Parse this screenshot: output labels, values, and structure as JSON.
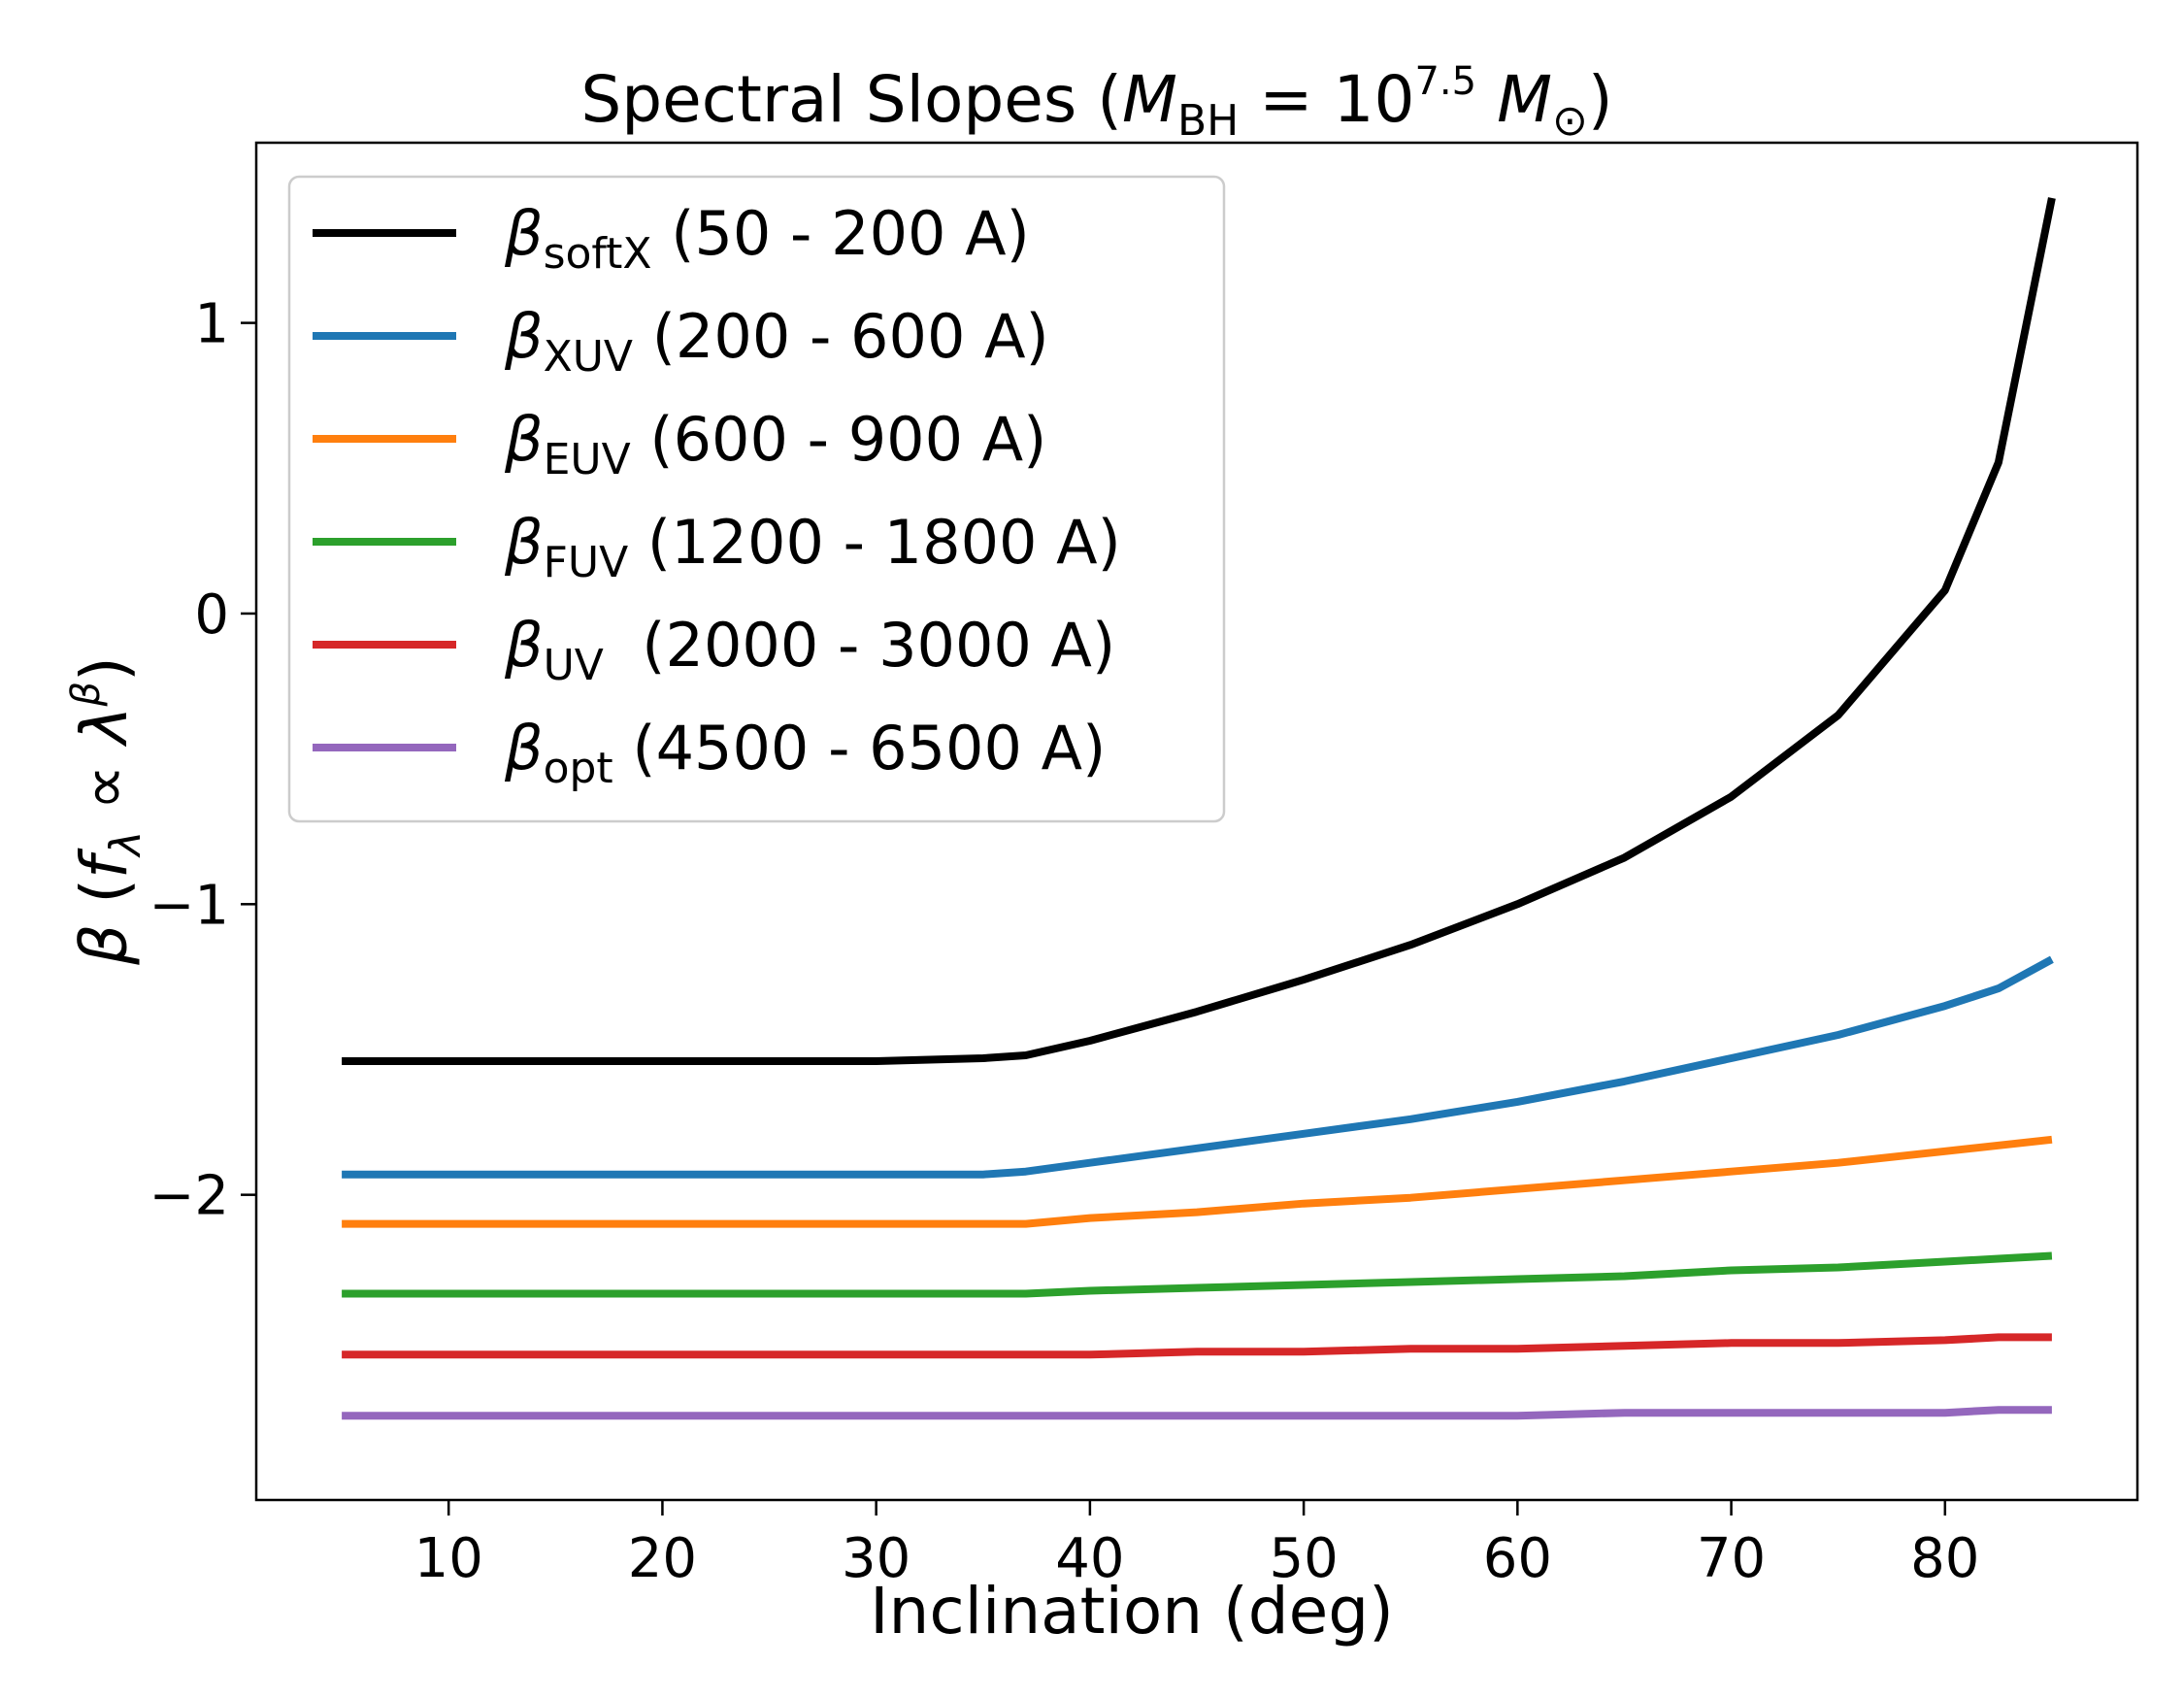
{
  "chart_data": {
    "type": "line",
    "title": {
      "prefix": "Spectral Slopes (",
      "var_M": "M",
      "var_sub": "BH",
      "eq": " = 10",
      "exp": "7.5",
      "sp": " ",
      "var_M2": "M",
      "sun_sub": "⊙",
      "suffix": ")"
    },
    "xlabel": "Inclination (deg)",
    "ylabel": {
      "beta": "β",
      "open": " (",
      "f": "f",
      "f_sub": "λ",
      "prop": " ∝ ",
      "lam": "λ",
      "exp": "β",
      "close": ")"
    },
    "xlim": [
      1,
      89
    ],
    "ylim": [
      -3.05,
      1.62
    ],
    "xticks": [
      10,
      20,
      30,
      40,
      50,
      60,
      70,
      80
    ],
    "yticks": [
      1,
      0,
      -1,
      -2
    ],
    "ytick_labels": [
      "1",
      "0",
      "−1",
      "−2"
    ],
    "grid": false,
    "legend_position": "upper-left",
    "x": [
      5,
      10,
      15,
      20,
      25,
      30,
      35,
      37,
      40,
      45,
      50,
      55,
      60,
      65,
      70,
      75,
      80,
      82.5,
      85
    ],
    "series": [
      {
        "name_base": "β",
        "name_sub": "softX",
        "name_range": " (50 - 200 A)",
        "color": "#000000",
        "values": [
          -1.54,
          -1.54,
          -1.54,
          -1.54,
          -1.54,
          -1.54,
          -1.53,
          -1.52,
          -1.47,
          -1.37,
          -1.26,
          -1.14,
          -1.0,
          -0.84,
          -0.63,
          -0.35,
          0.08,
          0.52,
          1.43
        ]
      },
      {
        "name_base": "β",
        "name_sub": "XUV",
        "name_range": " (200 - 600 A)",
        "color": "#1f77b4",
        "values": [
          -1.93,
          -1.93,
          -1.93,
          -1.93,
          -1.93,
          -1.93,
          -1.93,
          -1.92,
          -1.89,
          -1.84,
          -1.79,
          -1.74,
          -1.68,
          -1.61,
          -1.53,
          -1.45,
          -1.35,
          -1.29,
          -1.19
        ]
      },
      {
        "name_base": "β",
        "name_sub": "EUV",
        "name_range": " (600 - 900 A)",
        "color": "#ff7f0e",
        "values": [
          -2.1,
          -2.1,
          -2.1,
          -2.1,
          -2.1,
          -2.1,
          -2.1,
          -2.1,
          -2.08,
          -2.06,
          -2.03,
          -2.01,
          -1.98,
          -1.95,
          -1.92,
          -1.89,
          -1.85,
          -1.83,
          -1.81
        ]
      },
      {
        "name_base": "β",
        "name_sub": "FUV",
        "name_range": " (1200 - 1800 A)",
        "color": "#2ca02c",
        "values": [
          -2.34,
          -2.34,
          -2.34,
          -2.34,
          -2.34,
          -2.34,
          -2.34,
          -2.34,
          -2.33,
          -2.32,
          -2.31,
          -2.3,
          -2.29,
          -2.28,
          -2.26,
          -2.25,
          -2.23,
          -2.22,
          -2.21
        ]
      },
      {
        "name_base": "β",
        "name_sub": "UV",
        "name_range": "  (2000 - 3000 A)",
        "color": "#d62728",
        "values": [
          -2.55,
          -2.55,
          -2.55,
          -2.55,
          -2.55,
          -2.55,
          -2.55,
          -2.55,
          -2.55,
          -2.54,
          -2.54,
          -2.53,
          -2.53,
          -2.52,
          -2.51,
          -2.51,
          -2.5,
          -2.49,
          -2.49
        ]
      },
      {
        "name_base": "β",
        "name_sub": "opt",
        "name_range": " (4500 - 6500 A)",
        "color": "#9467bd",
        "values": [
          -2.76,
          -2.76,
          -2.76,
          -2.76,
          -2.76,
          -2.76,
          -2.76,
          -2.76,
          -2.76,
          -2.76,
          -2.76,
          -2.76,
          -2.76,
          -2.75,
          -2.75,
          -2.75,
          -2.75,
          -2.74,
          -2.74
        ]
      }
    ]
  }
}
